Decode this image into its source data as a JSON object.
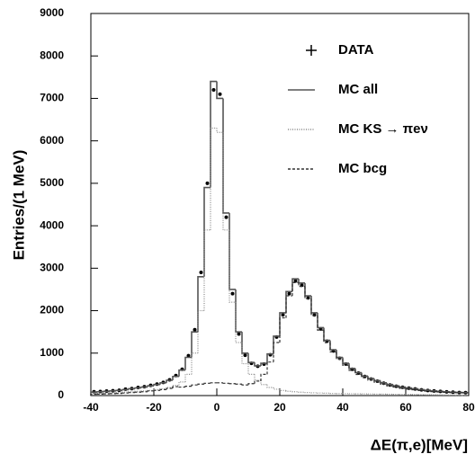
{
  "chart_data": {
    "type": "histogram",
    "x_label": "ΔE(π,e)[MeV]",
    "y_label": "Entries/(1 MeV)",
    "bins": [
      -40,
      -38,
      -36,
      -34,
      -32,
      -30,
      -28,
      -26,
      -24,
      -22,
      -20,
      -18,
      -16,
      -14,
      -12,
      -10,
      -8,
      -6,
      -4,
      -2,
      0,
      2,
      4,
      6,
      8,
      10,
      12,
      14,
      16,
      18,
      20,
      22,
      24,
      26,
      28,
      30,
      32,
      34,
      36,
      38,
      40,
      42,
      44,
      46,
      48,
      50,
      52,
      54,
      56,
      58,
      60,
      62,
      64,
      66,
      68,
      70,
      72,
      74,
      76,
      78,
      80
    ],
    "series": [
      {
        "name": "DATA",
        "color": "#000000",
        "style": "points",
        "values": [
          90,
          95,
          105,
          115,
          125,
          150,
          165,
          190,
          210,
          240,
          270,
          310,
          370,
          470,
          620,
          940,
          1550,
          2900,
          5000,
          7200,
          7100,
          4200,
          2400,
          1450,
          950,
          760,
          690,
          740,
          960,
          1380,
          1900,
          2400,
          2700,
          2600,
          2300,
          1900,
          1570,
          1280,
          1050,
          880,
          740,
          620,
          530,
          450,
          390,
          340,
          290,
          250,
          220,
          195,
          175,
          155,
          135,
          120,
          108,
          98,
          88,
          79,
          72,
          68
        ]
      },
      {
        "name": "MC all",
        "color": "#555555",
        "style": "solid",
        "values": [
          80,
          90,
          100,
          110,
          120,
          140,
          160,
          180,
          200,
          230,
          260,
          300,
          360,
          450,
          600,
          900,
          1500,
          2800,
          4900,
          7400,
          7000,
          4300,
          2500,
          1500,
          1000,
          780,
          700,
          760,
          980,
          1400,
          1950,
          2450,
          2750,
          2650,
          2350,
          1950,
          1600,
          1300,
          1080,
          900,
          760,
          640,
          540,
          460,
          400,
          350,
          300,
          260,
          230,
          200,
          180,
          160,
          140,
          125,
          110,
          100,
          90,
          80,
          75,
          70
        ]
      },
      {
        "name": "MC KS → πeν",
        "color": "#888888",
        "style": "dotted",
        "values": [
          50,
          55,
          60,
          65,
          70,
          80,
          90,
          100,
          110,
          120,
          140,
          160,
          190,
          240,
          320,
          500,
          1000,
          2000,
          3900,
          6300,
          6200,
          3900,
          2200,
          1250,
          750,
          500,
          360,
          260,
          190,
          150,
          120,
          100,
          90,
          80,
          70,
          65,
          60,
          55,
          50,
          48,
          46,
          44,
          42,
          40,
          38,
          36,
          34,
          32,
          30,
          28,
          26,
          24,
          22,
          20,
          18,
          16,
          14,
          12,
          10,
          8
        ]
      },
      {
        "name": "MC bcg",
        "color": "#333333",
        "style": "dashed",
        "values": [
          30,
          35,
          40,
          45,
          50,
          60,
          70,
          80,
          90,
          110,
          120,
          140,
          170,
          210,
          200,
          220,
          250,
          270,
          290,
          300,
          300,
          290,
          280,
          270,
          250,
          280,
          340,
          500,
          790,
          1250,
          1830,
          2350,
          2660,
          2570,
          2280,
          1885,
          1540,
          1245,
          1030,
          860,
          714,
          596,
          498,
          420,
          362,
          314,
          266,
          228,
          200,
          172,
          154,
          136,
          118,
          105,
          92,
          84,
          76,
          68,
          65,
          62
        ]
      }
    ],
    "xlim": [
      -40,
      80
    ],
    "ylim": [
      0,
      9000
    ],
    "xticks": [
      -40,
      -20,
      0,
      20,
      40,
      60,
      80
    ],
    "yticks": [
      0,
      1000,
      2000,
      3000,
      4000,
      5000,
      6000,
      7000,
      8000,
      9000
    ],
    "legend": "upper right"
  }
}
